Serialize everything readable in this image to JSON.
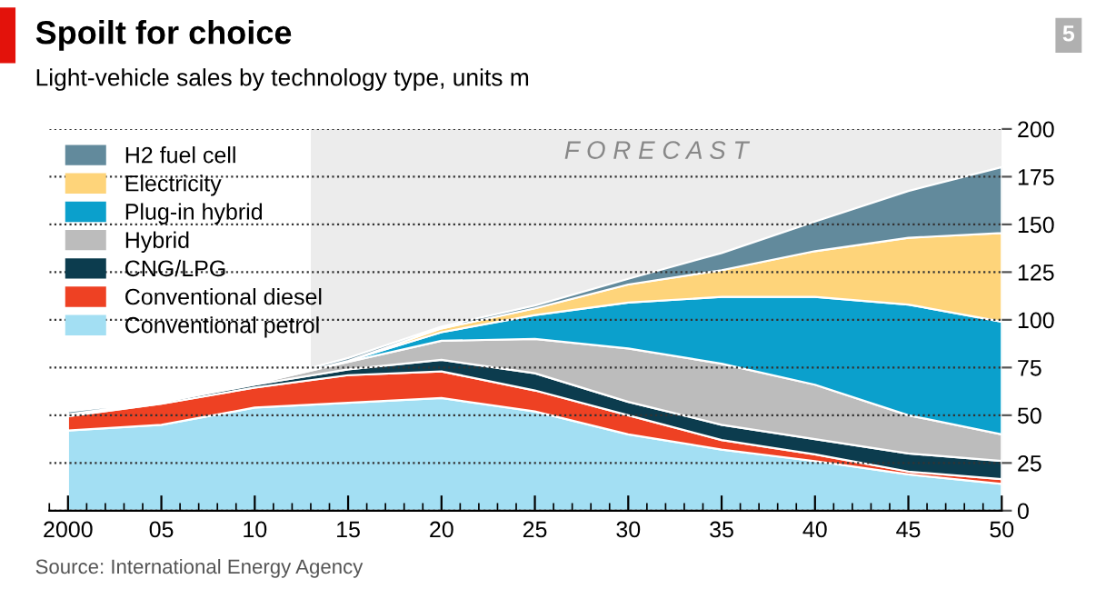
{
  "chart_data": {
    "type": "area",
    "stacked": true,
    "title": "Spoilt for choice",
    "subtitle": "Light-vehicle sales by technology type, units m",
    "annotations": [
      "Source: International Energy Agency",
      "5"
    ],
    "x": [
      2000,
      2005,
      2010,
      2015,
      2020,
      2025,
      2030,
      2035,
      2040,
      2045,
      2050
    ],
    "series": [
      {
        "name": "Conventional petrol",
        "color": "#a3dff3",
        "values": [
          42,
          45,
          54,
          56.5,
          59,
          52,
          40,
          32,
          26,
          19,
          14
        ]
      },
      {
        "name": "Conventional diesel",
        "color": "#ee4123",
        "values": [
          7.5,
          11,
          10.5,
          14.5,
          14,
          11,
          10,
          5,
          3.5,
          1.5,
          2.5
        ]
      },
      {
        "name": "CNG/LPG",
        "color": "#0c3c4e",
        "values": [
          1,
          1,
          1.5,
          3,
          6,
          9,
          7,
          8,
          8,
          9.5,
          9.5
        ]
      },
      {
        "name": "Hybrid",
        "color": "#bcbcbc",
        "values": [
          0,
          0,
          0.5,
          4,
          10,
          18,
          28,
          32,
          28.5,
          20,
          14
        ]
      },
      {
        "name": "Plug-in hybrid",
        "color": "#0ba0cc",
        "values": [
          0,
          0,
          0,
          0.5,
          4.5,
          12.5,
          24,
          35,
          46,
          58,
          59
        ]
      },
      {
        "name": "Electricity",
        "color": "#fed47a",
        "values": [
          0,
          0,
          0,
          0,
          2,
          3.5,
          9.5,
          14,
          24,
          35,
          46.5
        ]
      },
      {
        "name": "H2 fuel cell",
        "color": "#628a9c",
        "values": [
          1.5,
          0.5,
          0.5,
          1.5,
          1,
          1.5,
          3,
          9,
          15.5,
          24.5,
          34.5
        ]
      }
    ],
    "xlim": [
      1999,
      2050
    ],
    "xticks": [
      2000,
      {
        "value": 2005,
        "label": "05"
      },
      {
        "value": 2010,
        "label": "10"
      },
      {
        "value": 2015,
        "label": "15"
      },
      {
        "value": 2020,
        "label": "20"
      },
      {
        "value": 2025,
        "label": "25"
      },
      {
        "value": 2030,
        "label": "30"
      },
      {
        "value": 2035,
        "label": "35"
      },
      {
        "value": 2040,
        "label": "40"
      },
      {
        "value": 2045,
        "label": "45"
      },
      {
        "value": 2050,
        "label": "50"
      }
    ],
    "ylim": [
      0,
      200
    ],
    "yticks": [
      0,
      25,
      50,
      75,
      100,
      125,
      150,
      175,
      200
    ],
    "bands": [
      {
        "axis": "x",
        "from": 2013,
        "to": 2050,
        "label": "F O R E C A S T",
        "color": "#ececec"
      }
    ],
    "grid": "y",
    "legend": "top left"
  }
}
